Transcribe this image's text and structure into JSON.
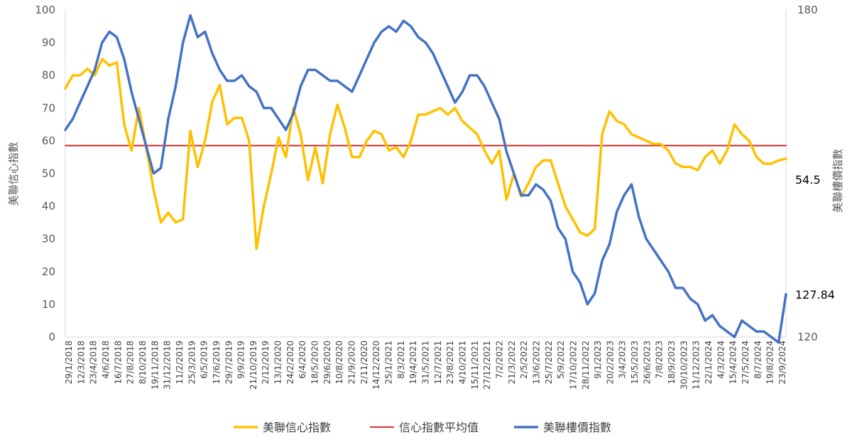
{
  "chart_data": {
    "type": "line",
    "ylabel_left": "美聯信心指數",
    "ylabel_right": "美聯樓價指數",
    "ylim_left": [
      0,
      100
    ],
    "ylim_right": [
      120,
      180
    ],
    "yticks_left": [
      "0",
      "10",
      "20",
      "30",
      "40",
      "50",
      "60",
      "70",
      "80",
      "90",
      "100"
    ],
    "yticks_right": [
      "120",
      "180"
    ],
    "x_tick_labels": [
      "29/1/2018",
      "12/3/2018",
      "23/4/2018",
      "4/6/2018",
      "16/7/2018",
      "27/8/2018",
      "8/10/2018",
      "19/11/2018",
      "31/12/2018",
      "11/2/2019",
      "25/3/2019",
      "6/5/2019",
      "17/6/2019",
      "29/7/2019",
      "9/9/2019",
      "21/10/2019",
      "2/12/2019",
      "13/1/2020",
      "24/2/2020",
      "6/4/2020",
      "18/5/2020",
      "29/6/2020",
      "10/8/2020",
      "21/9/2020",
      "2/11/2020",
      "14/12/2020",
      "25/1/2021",
      "8/3/2021",
      "19/4/2021",
      "31/5/2021",
      "12/7/2021",
      "23/8/2021",
      "4/10/2021",
      "15/11/2021",
      "27/12/2021",
      "7/2/2022",
      "21/3/2022",
      "2/5/2022",
      "13/6/2022",
      "25/7/2022",
      "5/9/2022",
      "17/10/2022",
      "28/11/2022",
      "9/1/2023",
      "20/2/2023",
      "3/4/2023",
      "15/5/2023",
      "26/6/2023",
      "7/8/2023",
      "18/9/2023",
      "30/10/2023",
      "11/12/2023",
      "22/1/2024",
      "4/3/2024",
      "15/4/2024",
      "27/5/2024",
      "8/7/2024",
      "19/8/2024",
      "23/9/2024"
    ],
    "series": [
      {
        "name": "美聯信心指數",
        "axis": "left",
        "color": "#FFC000",
        "values": [
          76,
          80,
          80,
          82,
          80,
          85,
          83,
          84,
          65,
          57,
          70,
          58,
          45,
          35,
          38,
          35,
          36,
          63,
          52,
          60,
          72,
          77,
          65,
          67,
          67,
          60,
          27,
          40,
          50,
          61,
          55,
          70,
          62,
          48,
          58,
          47,
          62,
          71,
          64,
          55,
          55,
          60,
          63,
          62,
          57,
          58,
          55,
          60,
          68,
          68,
          69,
          70,
          68,
          70,
          66,
          64,
          62,
          57,
          53,
          57,
          42,
          50,
          43,
          47,
          52,
          54,
          54,
          47,
          40,
          36,
          32,
          31,
          33,
          62,
          69,
          66,
          65,
          62,
          61,
          60,
          59,
          59,
          57,
          53,
          52,
          52,
          51,
          55,
          57,
          53,
          57,
          65,
          62,
          60,
          55,
          53,
          53,
          54,
          54.5
        ]
      },
      {
        "name": "信心指數平均值",
        "axis": "left",
        "color": "#E03030",
        "values": [
          58.5,
          58.5
        ]
      },
      {
        "name": "美聯樓價指數",
        "axis": "right",
        "color": "#4472C4",
        "values": [
          158,
          160,
          163,
          166,
          169,
          174,
          176,
          175,
          171,
          165,
          160,
          155,
          150,
          151,
          160,
          166,
          174,
          179,
          175,
          176,
          172,
          169,
          167,
          167,
          168,
          166,
          165,
          162,
          162,
          160,
          158,
          161,
          166,
          169,
          169,
          168,
          167,
          167,
          166,
          165,
          168,
          171,
          174,
          176,
          177,
          176,
          178,
          177,
          175,
          174,
          172,
          169,
          166,
          163,
          165,
          168,
          168,
          166,
          163,
          160,
          154,
          150,
          146,
          146,
          148,
          147,
          145,
          140,
          138,
          132,
          130,
          126,
          128,
          134,
          137,
          143,
          146,
          148,
          142,
          138,
          136,
          134,
          132,
          129,
          129,
          127,
          126,
          123,
          124,
          122,
          121,
          120,
          123,
          122,
          121,
          121,
          120,
          119,
          127.84
        ]
      }
    ],
    "annotations": [
      "54.5",
      "127.84"
    ],
    "legend": {
      "position": "bottom",
      "entries": [
        "美聯信心指數",
        "信心指數平均值",
        "美聯樓價指數"
      ]
    }
  }
}
